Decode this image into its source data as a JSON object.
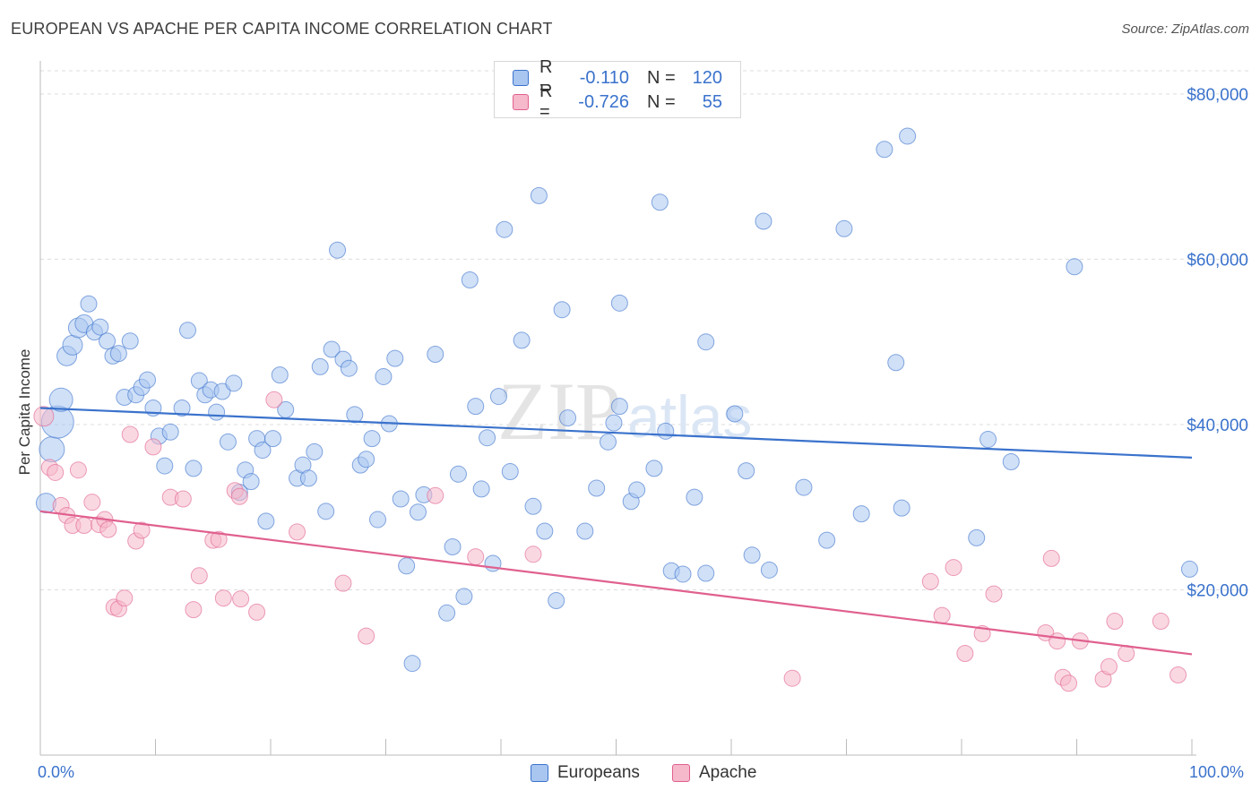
{
  "title": "EUROPEAN VS APACHE PER CAPITA INCOME CORRELATION CHART",
  "source": "Source: ZipAtlas.com",
  "colors": {
    "blue": "#3a72cc",
    "blue_fill": "#a9c6f0",
    "pink": "#e0608e",
    "pink_fill": "#f6b8cb",
    "grid": "#dddddd"
  },
  "legend": {
    "rows": [
      {
        "r_label": "R =",
        "r_value": "-0.110",
        "n_label": "N =",
        "n_value": "120"
      },
      {
        "r_label": "R =",
        "r_value": "-0.726",
        "n_label": "N =",
        "n_value": "55"
      }
    ]
  },
  "bottom_legend": {
    "europeans": "Europeans",
    "apache": "Apache"
  },
  "watermark": {
    "zip": "ZIP",
    "atlas": "atlas"
  },
  "chart_data": {
    "type": "scatter",
    "xlabel": "",
    "ylabel": "Per Capita Income",
    "xlim": [
      0,
      100
    ],
    "ylim": [
      0,
      84000
    ],
    "x_tick_labels": [
      "0.0%",
      "100.0%"
    ],
    "y_ticks": [
      20000,
      40000,
      60000,
      80000
    ],
    "y_tick_labels": [
      "$20,000",
      "$40,000",
      "$60,000",
      "$80,000"
    ],
    "grid": true,
    "series": [
      {
        "name": "Europeans",
        "trend": {
          "x": [
            0,
            100
          ],
          "y": [
            42000,
            36000
          ]
        },
        "points": [
          [
            0.5,
            30500,
            11
          ],
          [
            1.0,
            37000,
            14
          ],
          [
            1.5,
            40300,
            18
          ],
          [
            1.8,
            43000,
            13
          ],
          [
            2.3,
            48300,
            11
          ],
          [
            2.8,
            49600,
            11
          ],
          [
            3.3,
            51700,
            11
          ],
          [
            3.8,
            52200,
            10
          ],
          [
            4.2,
            54600,
            9
          ],
          [
            4.7,
            51200,
            9
          ],
          [
            5.2,
            51800,
            9
          ],
          [
            5.8,
            50100,
            9
          ],
          [
            6.3,
            48300,
            9
          ],
          [
            6.8,
            48600,
            9
          ],
          [
            7.3,
            43300,
            9
          ],
          [
            7.8,
            50100,
            9
          ],
          [
            8.3,
            43600,
            9
          ],
          [
            8.8,
            44500,
            9
          ],
          [
            9.3,
            45400,
            9
          ],
          [
            9.8,
            42000,
            9
          ],
          [
            10.3,
            38600,
            9
          ],
          [
            10.8,
            35000,
            9
          ],
          [
            11.3,
            39100,
            9
          ],
          [
            12.3,
            42000,
            9
          ],
          [
            12.8,
            51400,
            9
          ],
          [
            13.3,
            34700,
            9
          ],
          [
            13.8,
            45300,
            9
          ],
          [
            14.3,
            43600,
            9
          ],
          [
            14.8,
            44200,
            9
          ],
          [
            15.3,
            41500,
            9
          ],
          [
            15.8,
            44000,
            9
          ],
          [
            16.3,
            37900,
            9
          ],
          [
            16.8,
            45000,
            9
          ],
          [
            17.3,
            31800,
            9
          ],
          [
            17.8,
            34500,
            9
          ],
          [
            18.3,
            33100,
            9
          ],
          [
            18.8,
            38300,
            9
          ],
          [
            19.3,
            36900,
            9
          ],
          [
            19.6,
            28300,
            9
          ],
          [
            20.2,
            38300,
            9
          ],
          [
            20.8,
            46000,
            9
          ],
          [
            21.3,
            41800,
            9
          ],
          [
            22.3,
            33500,
            9
          ],
          [
            22.8,
            35100,
            9
          ],
          [
            23.3,
            33500,
            9
          ],
          [
            23.8,
            36700,
            9
          ],
          [
            24.3,
            47000,
            9
          ],
          [
            24.8,
            29500,
            9
          ],
          [
            25.3,
            49100,
            9
          ],
          [
            25.8,
            61100,
            9
          ],
          [
            26.3,
            47900,
            9
          ],
          [
            26.8,
            46800,
            9
          ],
          [
            27.3,
            41200,
            9
          ],
          [
            27.8,
            35100,
            9
          ],
          [
            28.3,
            35800,
            9
          ],
          [
            28.8,
            38300,
            9
          ],
          [
            29.3,
            28500,
            9
          ],
          [
            29.8,
            45800,
            9
          ],
          [
            30.3,
            40100,
            9
          ],
          [
            30.8,
            48000,
            9
          ],
          [
            31.3,
            31000,
            9
          ],
          [
            31.8,
            22900,
            9
          ],
          [
            32.3,
            11100,
            9
          ],
          [
            32.8,
            29400,
            9
          ],
          [
            33.3,
            31500,
            9
          ],
          [
            34.3,
            48500,
            9
          ],
          [
            35.3,
            17200,
            9
          ],
          [
            35.8,
            25200,
            9
          ],
          [
            36.3,
            34000,
            9
          ],
          [
            36.8,
            19200,
            9
          ],
          [
            37.3,
            57500,
            9
          ],
          [
            37.8,
            42200,
            9
          ],
          [
            38.3,
            32200,
            9
          ],
          [
            38.8,
            38400,
            9
          ],
          [
            39.3,
            23200,
            9
          ],
          [
            39.8,
            43400,
            9
          ],
          [
            40.3,
            63600,
            9
          ],
          [
            40.8,
            34300,
            9
          ],
          [
            41.8,
            50200,
            9
          ],
          [
            42.8,
            30100,
            9
          ],
          [
            43.3,
            67700,
            9
          ],
          [
            43.8,
            27100,
            9
          ],
          [
            44.8,
            18700,
            9
          ],
          [
            45.3,
            53900,
            9
          ],
          [
            45.8,
            40800,
            9
          ],
          [
            47.3,
            27100,
            9
          ],
          [
            48.3,
            32300,
            9
          ],
          [
            49.3,
            37900,
            9
          ],
          [
            49.8,
            40200,
            9
          ],
          [
            50.3,
            54700,
            9
          ],
          [
            50.3,
            42200,
            9
          ],
          [
            51.3,
            30700,
            9
          ],
          [
            51.8,
            32100,
            9
          ],
          [
            53.3,
            34700,
            9
          ],
          [
            53.8,
            66900,
            9
          ],
          [
            54.3,
            39200,
            9
          ],
          [
            54.8,
            22300,
            9
          ],
          [
            55.8,
            21900,
            9
          ],
          [
            56.8,
            31200,
            9
          ],
          [
            57.8,
            22000,
            9
          ],
          [
            57.8,
            50000,
            9
          ],
          [
            60.3,
            41300,
            9
          ],
          [
            61.3,
            34400,
            9
          ],
          [
            61.8,
            24200,
            9
          ],
          [
            62.8,
            64600,
            9
          ],
          [
            63.3,
            22400,
            9
          ],
          [
            66.3,
            32400,
            9
          ],
          [
            68.3,
            26000,
            9
          ],
          [
            69.8,
            63700,
            9
          ],
          [
            71.3,
            29200,
            9
          ],
          [
            73.3,
            73300,
            9
          ],
          [
            74.3,
            47500,
            9
          ],
          [
            74.8,
            29900,
            9
          ],
          [
            75.3,
            74900,
            9
          ],
          [
            81.3,
            26300,
            9
          ],
          [
            82.3,
            38200,
            9
          ],
          [
            84.3,
            35500,
            9
          ],
          [
            89.8,
            59100,
            9
          ],
          [
            99.8,
            22500,
            9
          ]
        ]
      },
      {
        "name": "Apache",
        "trend": {
          "x": [
            0,
            100
          ],
          "y": [
            29500,
            12200
          ]
        },
        "points": [
          [
            0.3,
            41000,
            11
          ],
          [
            0.8,
            34800,
            9
          ],
          [
            1.3,
            34200,
            9
          ],
          [
            1.8,
            30200,
            9
          ],
          [
            2.3,
            29000,
            9
          ],
          [
            2.8,
            27800,
            9
          ],
          [
            3.3,
            34500,
            9
          ],
          [
            3.8,
            27800,
            9
          ],
          [
            4.5,
            30600,
            9
          ],
          [
            5.1,
            27900,
            9
          ],
          [
            5.6,
            28500,
            9
          ],
          [
            5.9,
            27300,
            9
          ],
          [
            6.4,
            17900,
            9
          ],
          [
            6.8,
            17700,
            9
          ],
          [
            7.3,
            19000,
            9
          ],
          [
            7.8,
            38800,
            9
          ],
          [
            8.3,
            25900,
            9
          ],
          [
            8.8,
            27200,
            9
          ],
          [
            9.8,
            37300,
            9
          ],
          [
            11.3,
            31200,
            9
          ],
          [
            12.4,
            31000,
            9
          ],
          [
            13.3,
            17600,
            9
          ],
          [
            13.8,
            21700,
            9
          ],
          [
            15.0,
            26000,
            9
          ],
          [
            15.5,
            26100,
            9
          ],
          [
            15.9,
            19000,
            9
          ],
          [
            16.9,
            32000,
            9
          ],
          [
            17.3,
            31300,
            9
          ],
          [
            17.4,
            18900,
            9
          ],
          [
            18.8,
            17300,
            9
          ],
          [
            20.3,
            43000,
            9
          ],
          [
            22.3,
            27000,
            9
          ],
          [
            26.3,
            20800,
            9
          ],
          [
            28.3,
            14400,
            9
          ],
          [
            34.3,
            31400,
            9
          ],
          [
            37.8,
            24000,
            9
          ],
          [
            42.8,
            24300,
            9
          ],
          [
            65.3,
            9300,
            9
          ],
          [
            77.3,
            21000,
            9
          ],
          [
            78.3,
            16900,
            9
          ],
          [
            79.3,
            22700,
            9
          ],
          [
            80.3,
            12300,
            9
          ],
          [
            81.8,
            14700,
            9
          ],
          [
            82.8,
            19500,
            9
          ],
          [
            87.3,
            14800,
            9
          ],
          [
            87.8,
            23800,
            9
          ],
          [
            88.3,
            13800,
            9
          ],
          [
            88.8,
            9400,
            9
          ],
          [
            89.3,
            8700,
            9
          ],
          [
            90.3,
            13800,
            9
          ],
          [
            92.3,
            9200,
            9
          ],
          [
            92.8,
            10700,
            9
          ],
          [
            93.3,
            16200,
            9
          ],
          [
            94.3,
            12300,
            9
          ],
          [
            97.3,
            16200,
            9
          ],
          [
            98.8,
            9700,
            9
          ]
        ]
      }
    ]
  }
}
